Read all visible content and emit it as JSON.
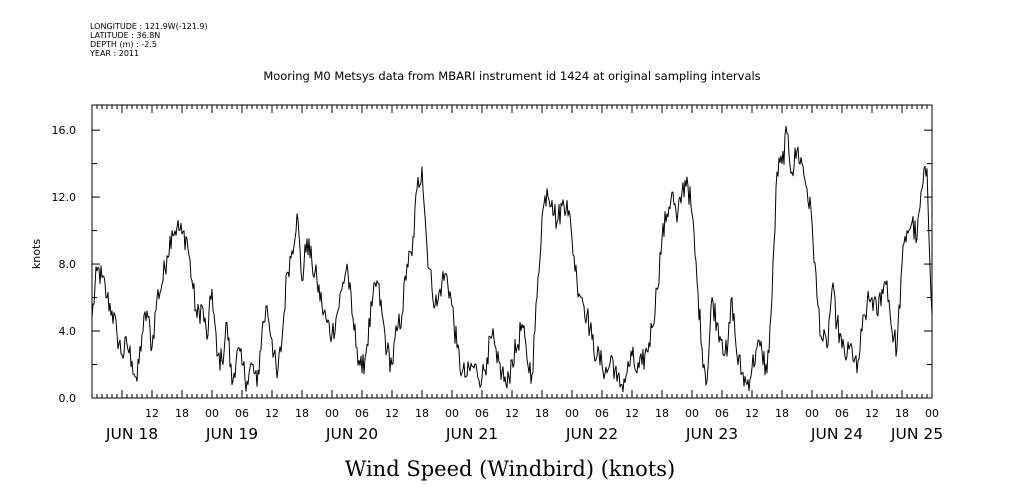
{
  "header_info": {
    "longitude": "LONGITUDE : 121.9W(-121.9)",
    "latitude": "LATITUDE : 36.8N",
    "depth": "DEPTH (m) : -2.5",
    "year": "YEAR : 2011"
  },
  "chart_data": {
    "type": "line",
    "title": "Mooring M0 Metsys data from MBARI instrument id 1424 at original sampling intervals",
    "xlabel": "Wind Speed (Windbird) (knots)",
    "ylabel": "knots",
    "ylim": [
      0,
      17.5
    ],
    "xlim_hours": [
      0,
      168
    ],
    "yticks": [
      0,
      4,
      8,
      12,
      16
    ],
    "ytick_labels": [
      "0.0",
      "4.0",
      "8.0",
      "12.0",
      "16.0"
    ],
    "x_hour_ticks": [
      {
        "h": 12,
        "label": "12"
      },
      {
        "h": 18,
        "label": "18"
      },
      {
        "h": 24,
        "label": "00"
      },
      {
        "h": 30,
        "label": "06"
      },
      {
        "h": 36,
        "label": "12"
      },
      {
        "h": 42,
        "label": "18"
      },
      {
        "h": 48,
        "label": "00"
      },
      {
        "h": 54,
        "label": "06"
      },
      {
        "h": 60,
        "label": "12"
      },
      {
        "h": 66,
        "label": "18"
      },
      {
        "h": 72,
        "label": "00"
      },
      {
        "h": 78,
        "label": "06"
      },
      {
        "h": 84,
        "label": "12"
      },
      {
        "h": 90,
        "label": "18"
      },
      {
        "h": 96,
        "label": "00"
      },
      {
        "h": 102,
        "label": "06"
      },
      {
        "h": 108,
        "label": "12"
      },
      {
        "h": 114,
        "label": "18"
      },
      {
        "h": 120,
        "label": "00"
      },
      {
        "h": 126,
        "label": "06"
      },
      {
        "h": 132,
        "label": "12"
      },
      {
        "h": 138,
        "label": "18"
      },
      {
        "h": 144,
        "label": "00"
      },
      {
        "h": 150,
        "label": "06"
      },
      {
        "h": 156,
        "label": "12"
      },
      {
        "h": 162,
        "label": "18"
      },
      {
        "h": 168,
        "label": "00"
      }
    ],
    "x_day_labels": [
      {
        "h": 8,
        "label": "JUN 18"
      },
      {
        "h": 28,
        "label": "JUN 19"
      },
      {
        "h": 52,
        "label": "JUN 20"
      },
      {
        "h": 76,
        "label": "JUN 21"
      },
      {
        "h": 100,
        "label": "JUN 22"
      },
      {
        "h": 124,
        "label": "JUN 23"
      },
      {
        "h": 149,
        "label": "JUN 24"
      },
      {
        "h": 165,
        "label": "JUN 25"
      }
    ],
    "grid": false,
    "series": [
      {
        "color": "#000000",
        "x": [
          0,
          1,
          2,
          3,
          4,
          5,
          6,
          7,
          8,
          9,
          10,
          11,
          12,
          13,
          14,
          15,
          16,
          17,
          18,
          19,
          20,
          21,
          22,
          23,
          24,
          25,
          26,
          27,
          28,
          29,
          30,
          31,
          32,
          33,
          34,
          35,
          36,
          37,
          38,
          39,
          40,
          41,
          42,
          43,
          44,
          45,
          46,
          47,
          48,
          49,
          50,
          51,
          52,
          53,
          54,
          55,
          56,
          57,
          58,
          59,
          60,
          61,
          62,
          63,
          64,
          65,
          66,
          67,
          68,
          69,
          70,
          71,
          72,
          73,
          74,
          75,
          76,
          77,
          78,
          79,
          80,
          81,
          82,
          83,
          84,
          85,
          86,
          87,
          88,
          89,
          90,
          91,
          92,
          93,
          94,
          95,
          96,
          97,
          98,
          99,
          100,
          101,
          102,
          103,
          104,
          105,
          106,
          107,
          108,
          109,
          110,
          111,
          112,
          113,
          114,
          115,
          116,
          117,
          118,
          119,
          120,
          121,
          122,
          123,
          124,
          125,
          126,
          127,
          128,
          129,
          130,
          131,
          132,
          133,
          134,
          135,
          136,
          137,
          138,
          139,
          140,
          141,
          142,
          143,
          144,
          145,
          146,
          147,
          148,
          149,
          150,
          151,
          152,
          153,
          154,
          155,
          156,
          157,
          158,
          159,
          160,
          161,
          162,
          163,
          164,
          165,
          166,
          167,
          168
        ],
        "y": [
          4.8,
          7.6,
          7.2,
          6.0,
          5.2,
          3.8,
          2.6,
          3.2,
          2.2,
          1.0,
          3.8,
          5.2,
          3.0,
          6.0,
          6.8,
          8.5,
          10.0,
          10.2,
          9.8,
          9.5,
          7.0,
          4.8,
          5.5,
          3.5,
          6.5,
          2.5,
          2.2,
          4.5,
          0.8,
          2.8,
          2.0,
          1.0,
          2.0,
          0.7,
          4.0,
          5.5,
          3.5,
          1.2,
          3.5,
          7.5,
          8.8,
          11.0,
          7.0,
          9.5,
          8.0,
          7.0,
          5.5,
          4.5,
          3.8,
          5.0,
          6.5,
          8.0,
          5.0,
          3.0,
          1.5,
          3.2,
          5.5,
          7.0,
          5.0,
          2.8,
          2.0,
          4.0,
          5.0,
          8.0,
          8.5,
          12.5,
          13.8,
          9.0,
          6.5,
          5.5,
          7.0,
          7.3,
          5.5,
          3.0,
          1.5,
          1.3,
          1.9,
          1.6,
          1.2,
          2.4,
          3.7,
          2.1,
          1.6,
          0.6,
          2.3,
          3.0,
          4.4,
          2.3,
          1.4,
          6.0,
          10.8,
          12.5,
          11.8,
          10.5,
          11.5,
          11.8,
          9.5,
          7.0,
          6.0,
          5.0,
          3.5,
          2.5,
          2.0,
          1.5,
          2.5,
          1.0,
          0.8,
          1.5,
          2.5,
          1.5,
          2.0,
          2.8,
          4.2,
          6.5,
          9.5,
          11.0,
          12.3,
          10.5,
          12.3,
          13.2,
          11.0,
          7.0,
          3.0,
          1.0,
          6.0,
          4.5,
          3.5,
          2.5,
          6.0,
          2.5,
          1.5,
          0.8,
          1.8,
          3.0,
          2.8,
          1.5,
          6.0,
          13.5,
          14.0,
          15.8,
          13.5,
          14.8,
          14.0,
          12.5,
          10.5,
          6.0,
          3.5,
          3.0,
          6.5,
          4.5,
          3.0,
          2.5,
          3.0,
          1.5,
          4.0,
          5.5,
          6.0,
          5.0,
          6.5,
          7.0,
          4.0,
          3.0,
          8.0,
          10.0,
          10.5,
          9.5,
          12.5,
          13.7,
          5.0
        ]
      }
    ]
  }
}
